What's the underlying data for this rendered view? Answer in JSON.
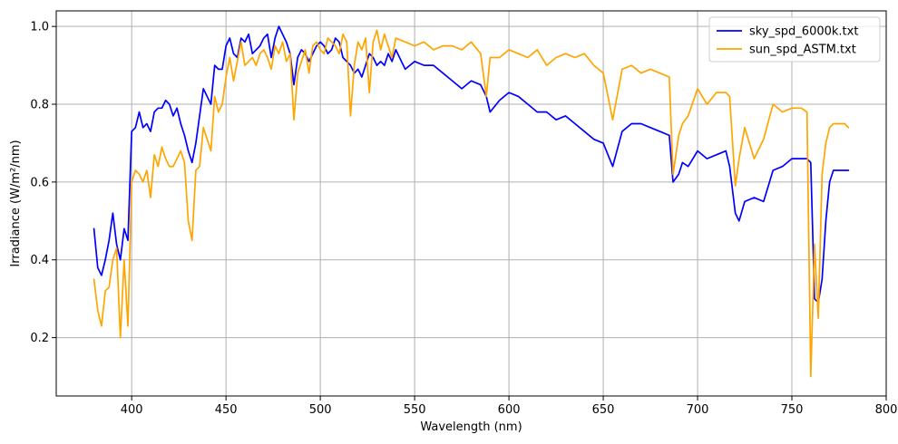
{
  "chart_data": {
    "type": "line",
    "title": "",
    "xlabel": "Wavelength (nm)",
    "ylabel": "Irradiance (W/m²/nm)",
    "xlim": [
      360,
      800
    ],
    "ylim": [
      0.05,
      1.04
    ],
    "xticks": [
      400,
      450,
      500,
      550,
      600,
      650,
      700,
      750,
      800
    ],
    "yticks": [
      0.2,
      0.4,
      0.6,
      0.8,
      1.0
    ],
    "xtick_labels": [
      "400",
      "450",
      "500",
      "550",
      "600",
      "650",
      "700",
      "750",
      "800"
    ],
    "ytick_labels": [
      "0.2",
      "0.4",
      "0.6",
      "0.8",
      "1.0"
    ],
    "grid": true,
    "legend_position": "top-right",
    "series": [
      {
        "name": "sky_spd_6000k.txt",
        "color": "#0000ff",
        "x": [
          380,
          382,
          384,
          386,
          388,
          390,
          392,
          394,
          396,
          398,
          400,
          402,
          404,
          406,
          408,
          410,
          412,
          414,
          416,
          418,
          420,
          422,
          424,
          426,
          428,
          430,
          432,
          434,
          436,
          438,
          440,
          442,
          444,
          446,
          448,
          450,
          452,
          454,
          456,
          458,
          460,
          462,
          464,
          466,
          468,
          470,
          472,
          474,
          476,
          478,
          480,
          482,
          484,
          486,
          488,
          490,
          492,
          494,
          496,
          498,
          500,
          502,
          504,
          506,
          508,
          510,
          512,
          514,
          516,
          518,
          520,
          522,
          524,
          526,
          528,
          530,
          532,
          534,
          536,
          538,
          540,
          545,
          550,
          555,
          560,
          565,
          570,
          575,
          580,
          585,
          588,
          590,
          595,
          600,
          605,
          610,
          615,
          620,
          625,
          630,
          635,
          640,
          645,
          650,
          655,
          660,
          665,
          670,
          675,
          680,
          685,
          687,
          690,
          692,
          695,
          700,
          705,
          710,
          715,
          717,
          720,
          722,
          725,
          730,
          735,
          740,
          745,
          750,
          755,
          758,
          760,
          762,
          764,
          766,
          768,
          770,
          772,
          775,
          778,
          780
        ],
        "values": [
          0.48,
          0.38,
          0.36,
          0.4,
          0.45,
          0.52,
          0.44,
          0.4,
          0.48,
          0.45,
          0.73,
          0.74,
          0.78,
          0.74,
          0.75,
          0.73,
          0.78,
          0.79,
          0.79,
          0.81,
          0.8,
          0.77,
          0.79,
          0.75,
          0.72,
          0.68,
          0.65,
          0.7,
          0.77,
          0.84,
          0.82,
          0.8,
          0.9,
          0.89,
          0.89,
          0.95,
          0.97,
          0.93,
          0.92,
          0.97,
          0.96,
          0.98,
          0.93,
          0.94,
          0.95,
          0.97,
          0.98,
          0.92,
          0.97,
          1.0,
          0.98,
          0.96,
          0.93,
          0.85,
          0.92,
          0.94,
          0.93,
          0.91,
          0.93,
          0.95,
          0.96,
          0.95,
          0.93,
          0.94,
          0.97,
          0.96,
          0.92,
          0.91,
          0.9,
          0.88,
          0.89,
          0.87,
          0.9,
          0.93,
          0.92,
          0.9,
          0.91,
          0.9,
          0.93,
          0.91,
          0.94,
          0.89,
          0.91,
          0.9,
          0.9,
          0.88,
          0.86,
          0.84,
          0.86,
          0.85,
          0.82,
          0.78,
          0.81,
          0.83,
          0.82,
          0.8,
          0.78,
          0.78,
          0.76,
          0.77,
          0.75,
          0.73,
          0.71,
          0.7,
          0.64,
          0.73,
          0.75,
          0.75,
          0.74,
          0.73,
          0.72,
          0.6,
          0.62,
          0.65,
          0.64,
          0.68,
          0.66,
          0.67,
          0.68,
          0.64,
          0.52,
          0.5,
          0.55,
          0.56,
          0.55,
          0.63,
          0.64,
          0.66,
          0.66,
          0.66,
          0.65,
          0.3,
          0.29,
          0.35,
          0.5,
          0.6,
          0.63,
          0.63,
          0.63,
          0.63
        ]
      },
      {
        "name": "sun_spd_ASTM.txt",
        "color": "#ffa500",
        "x": [
          380,
          382,
          384,
          386,
          388,
          390,
          392,
          394,
          396,
          398,
          400,
          402,
          404,
          406,
          408,
          410,
          412,
          414,
          416,
          418,
          420,
          422,
          424,
          426,
          428,
          430,
          432,
          434,
          436,
          438,
          440,
          442,
          444,
          446,
          448,
          450,
          452,
          454,
          456,
          458,
          460,
          462,
          464,
          466,
          468,
          470,
          472,
          474,
          476,
          478,
          480,
          482,
          484,
          486,
          488,
          490,
          492,
          494,
          496,
          498,
          500,
          502,
          504,
          506,
          508,
          510,
          512,
          514,
          516,
          518,
          520,
          522,
          524,
          526,
          528,
          530,
          532,
          534,
          536,
          538,
          540,
          545,
          550,
          555,
          560,
          565,
          570,
          575,
          580,
          585,
          588,
          590,
          595,
          600,
          605,
          610,
          615,
          620,
          625,
          630,
          635,
          640,
          645,
          650,
          655,
          660,
          665,
          670,
          675,
          680,
          685,
          687,
          690,
          692,
          695,
          700,
          705,
          710,
          715,
          717,
          720,
          722,
          725,
          730,
          735,
          740,
          745,
          750,
          755,
          758,
          760,
          762,
          764,
          766,
          768,
          770,
          772,
          775,
          778,
          780
        ],
        "values": [
          0.35,
          0.27,
          0.23,
          0.32,
          0.33,
          0.4,
          0.43,
          0.2,
          0.4,
          0.23,
          0.6,
          0.63,
          0.62,
          0.6,
          0.63,
          0.56,
          0.67,
          0.64,
          0.69,
          0.66,
          0.64,
          0.64,
          0.66,
          0.68,
          0.65,
          0.5,
          0.45,
          0.63,
          0.64,
          0.74,
          0.71,
          0.68,
          0.82,
          0.78,
          0.8,
          0.87,
          0.92,
          0.86,
          0.91,
          0.96,
          0.9,
          0.91,
          0.92,
          0.9,
          0.93,
          0.94,
          0.92,
          0.89,
          0.95,
          0.93,
          0.96,
          0.91,
          0.93,
          0.76,
          0.88,
          0.91,
          0.94,
          0.88,
          0.95,
          0.96,
          0.94,
          0.93,
          0.97,
          0.96,
          0.95,
          0.93,
          0.98,
          0.96,
          0.77,
          0.9,
          0.96,
          0.94,
          0.97,
          0.83,
          0.96,
          0.99,
          0.94,
          0.98,
          0.95,
          0.92,
          0.97,
          0.96,
          0.95,
          0.96,
          0.94,
          0.95,
          0.95,
          0.94,
          0.96,
          0.93,
          0.82,
          0.92,
          0.92,
          0.94,
          0.93,
          0.92,
          0.94,
          0.9,
          0.92,
          0.93,
          0.92,
          0.93,
          0.9,
          0.88,
          0.76,
          0.89,
          0.9,
          0.88,
          0.89,
          0.88,
          0.87,
          0.62,
          0.72,
          0.75,
          0.77,
          0.84,
          0.8,
          0.83,
          0.83,
          0.82,
          0.59,
          0.66,
          0.74,
          0.66,
          0.71,
          0.8,
          0.78,
          0.79,
          0.79,
          0.78,
          0.1,
          0.44,
          0.25,
          0.62,
          0.7,
          0.74,
          0.75,
          0.75,
          0.75,
          0.74
        ]
      }
    ]
  }
}
